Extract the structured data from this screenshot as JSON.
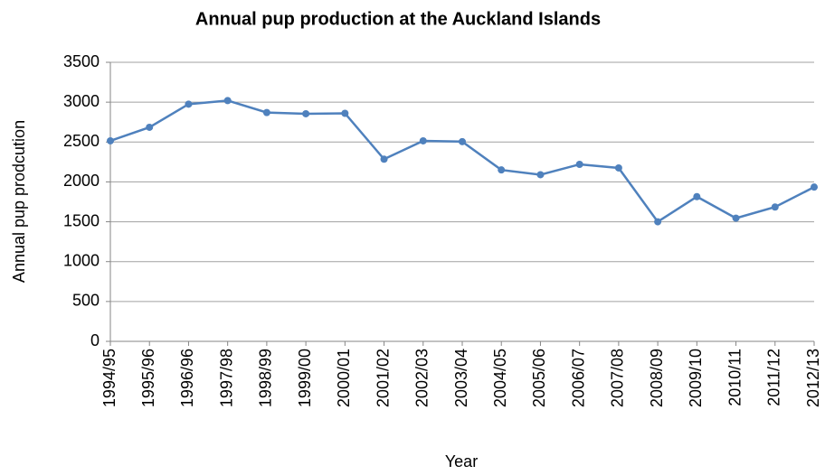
{
  "chart_data": {
    "type": "line",
    "title": "Annual pup production at the Auckland Islands",
    "x_label": "Year",
    "y_label": "Annual pup prodcution",
    "categories": [
      "1994/95",
      "1995/96",
      "1996/96",
      "1997/98",
      "1998/99",
      "1999/00",
      "2000/01",
      "2001/02",
      "2002/03",
      "2003/04",
      "2004/05",
      "2005/06",
      "2006/07",
      "2007/08",
      "2008/09",
      "2009/10",
      "2010/11",
      "2011/12",
      "2012/13"
    ],
    "series": [
      {
        "name": "Annual pup production",
        "color": "#4f81bd",
        "values": [
          2515,
          2685,
          2975,
          3020,
          2870,
          2855,
          2860,
          2285,
          2515,
          2505,
          2150,
          2090,
          2220,
          2175,
          1500,
          1815,
          1545,
          1685,
          1935
        ]
      }
    ],
    "ylim": [
      0,
      3500
    ],
    "yticks": [
      0,
      500,
      1000,
      1500,
      2000,
      2500,
      3000,
      3500
    ],
    "grid": true
  }
}
